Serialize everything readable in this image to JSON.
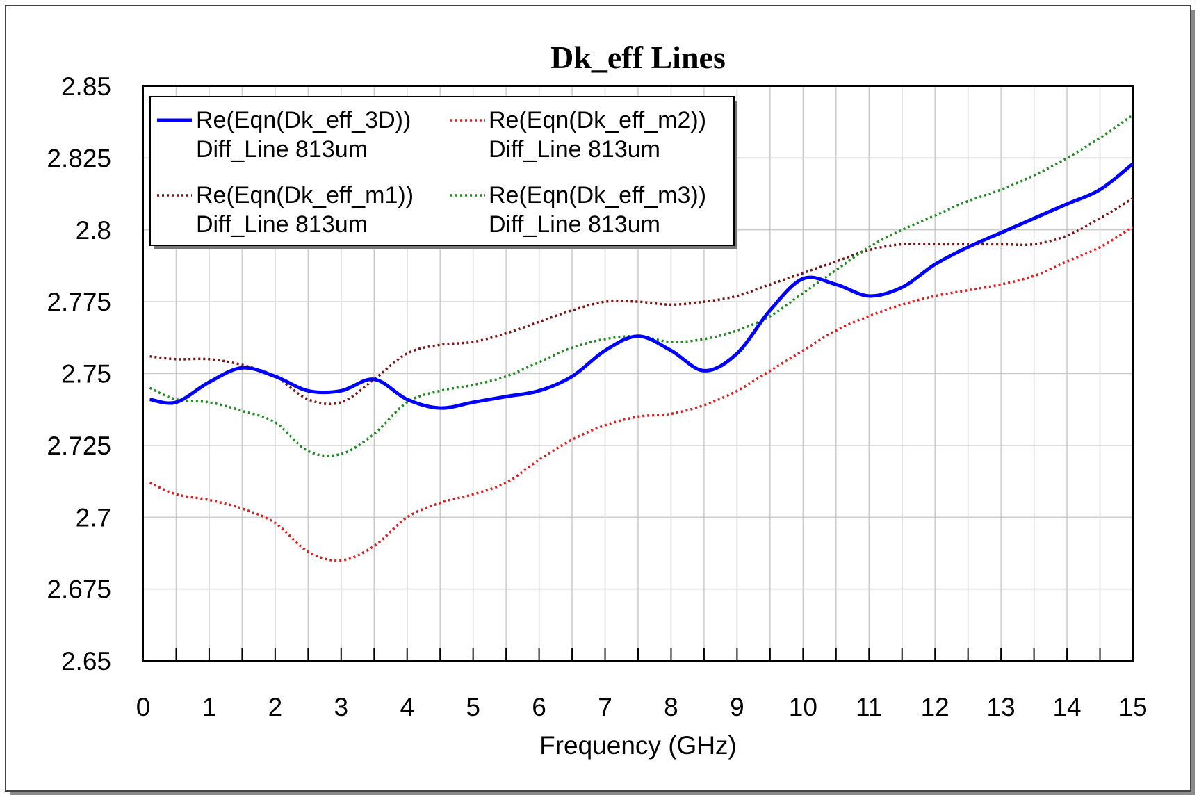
{
  "chart_data": {
    "type": "line",
    "title": "Dk_eff Lines",
    "xlabel": "Frequency (GHz)",
    "ylabel": "",
    "xlim": [
      0,
      15
    ],
    "ylim": [
      2.65,
      2.85
    ],
    "xticks": [
      "0",
      "1",
      "2",
      "3",
      "4",
      "5",
      "6",
      "7",
      "8",
      "9",
      "10",
      "11",
      "12",
      "13",
      "14",
      "15"
    ],
    "yticks": [
      "2.65",
      "2.675",
      "2.7",
      "2.725",
      "2.75",
      "2.775",
      "2.8",
      "2.825",
      "2.85"
    ],
    "grid": true,
    "legend_position": "top-left",
    "x": [
      0.1,
      0.5,
      1,
      1.5,
      2,
      2.5,
      3,
      3.5,
      4,
      4.5,
      5,
      5.5,
      6,
      6.5,
      7,
      7.5,
      8,
      8.5,
      9,
      9.5,
      10,
      10.5,
      11,
      11.5,
      12,
      12.5,
      13,
      13.5,
      14,
      14.5,
      15
    ],
    "series": [
      {
        "name": "Re(Eqn(Dk_eff_3D))",
        "subname": "Diff_Line 813um",
        "color": "#0000ff",
        "style": "solid",
        "values": [
          2.741,
          2.74,
          2.747,
          2.752,
          2.749,
          2.744,
          2.744,
          2.748,
          2.741,
          2.738,
          2.74,
          2.742,
          2.744,
          2.749,
          2.758,
          2.763,
          2.758,
          2.751,
          2.757,
          2.772,
          2.783,
          2.781,
          2.777,
          2.78,
          2.788,
          2.794,
          2.799,
          2.804,
          2.809,
          2.814,
          2.823
        ]
      },
      {
        "name": "Re(Eqn(Dk_eff_m2))",
        "subname": "Diff_Line 813um",
        "color": "#dd1f1f",
        "style": "dotted",
        "values": [
          2.712,
          2.708,
          2.706,
          2.703,
          2.698,
          2.688,
          2.685,
          2.69,
          2.7,
          2.705,
          2.708,
          2.712,
          2.72,
          2.727,
          2.732,
          2.735,
          2.736,
          2.739,
          2.744,
          2.751,
          2.758,
          2.765,
          2.77,
          2.774,
          2.777,
          2.779,
          2.781,
          2.784,
          2.789,
          2.794,
          2.801
        ]
      },
      {
        "name": "Re(Eqn(Dk_eff_m1))",
        "subname": "Diff_Line 813um",
        "color": "#7a1414",
        "style": "dotted",
        "values": [
          2.756,
          2.755,
          2.755,
          2.753,
          2.749,
          2.741,
          2.74,
          2.748,
          2.757,
          2.76,
          2.761,
          2.764,
          2.768,
          2.772,
          2.775,
          2.775,
          2.774,
          2.775,
          2.777,
          2.781,
          2.785,
          2.789,
          2.793,
          2.795,
          2.795,
          2.795,
          2.795,
          2.795,
          2.798,
          2.804,
          2.811
        ]
      },
      {
        "name": "Re(Eqn(Dk_eff_m3))",
        "subname": "Diff_Line 813um",
        "color": "#1e8a1e",
        "style": "dotted",
        "values": [
          2.745,
          2.741,
          2.74,
          2.737,
          2.733,
          2.723,
          2.722,
          2.729,
          2.74,
          2.744,
          2.746,
          2.749,
          2.754,
          2.759,
          2.762,
          2.763,
          2.761,
          2.762,
          2.765,
          2.77,
          2.778,
          2.786,
          2.794,
          2.8,
          2.805,
          2.81,
          2.814,
          2.819,
          2.825,
          2.832,
          2.84
        ]
      }
    ]
  }
}
